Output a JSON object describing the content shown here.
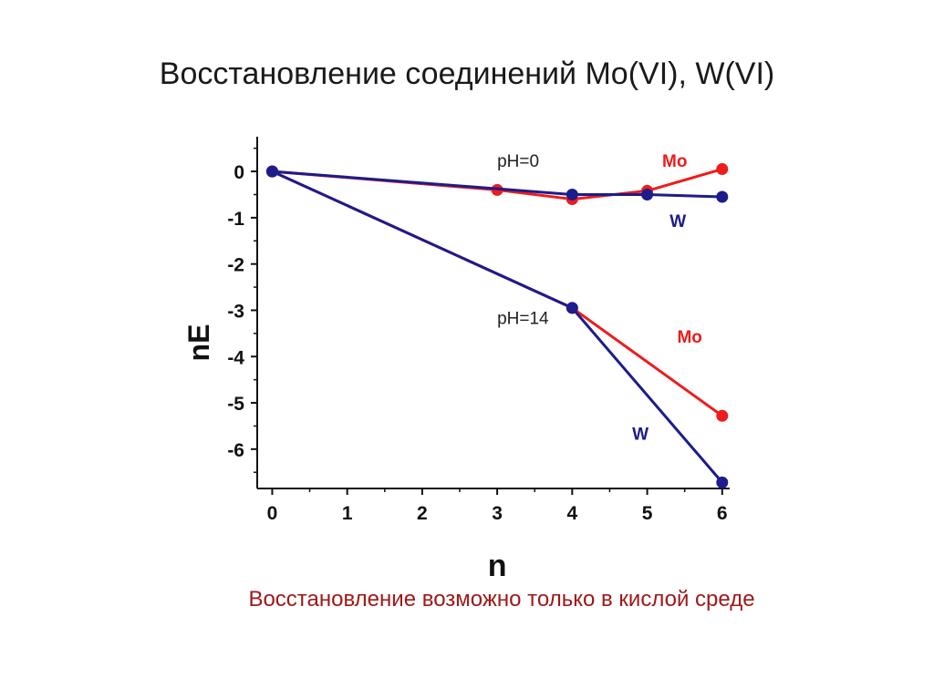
{
  "slide": {
    "title": "Восстановление соединений Mo(VI), W(VI)",
    "caption": "Восстановление возможно только в кислой среде"
  },
  "colors": {
    "mo": "#ee1c1c",
    "w": "#1c1c8c",
    "axis": "#111111",
    "caption": "#a01818"
  },
  "chart_data": {
    "type": "line",
    "xlabel": "n",
    "ylabel": "nE",
    "xlim": [
      -0.2,
      6.1
    ],
    "ylim": [
      -6.85,
      0.75
    ],
    "x_ticks": [
      0,
      1,
      2,
      3,
      4,
      5,
      6
    ],
    "y_ticks": [
      0,
      -1,
      -2,
      -3,
      -4,
      -5,
      -6
    ],
    "grid": false,
    "legend": "none",
    "series": [
      {
        "group": "pH=0",
        "name": "Mo",
        "color": "#ee1c1c",
        "x": [
          0,
          3,
          4,
          5,
          6
        ],
        "y": [
          0,
          -0.4,
          -0.6,
          -0.42,
          0.05
        ]
      },
      {
        "group": "pH=0",
        "name": "W",
        "color": "#1c1c8c",
        "x": [
          0,
          4,
          5,
          6
        ],
        "y": [
          0,
          -0.5,
          -0.5,
          -0.55
        ]
      },
      {
        "group": "pH=14",
        "name": "Mo",
        "color": "#ee1c1c",
        "x": [
          0,
          4,
          6
        ],
        "y": [
          0,
          -2.95,
          -5.28
        ]
      },
      {
        "group": "pH=14",
        "name": "W",
        "color": "#1c1c8c",
        "x": [
          0,
          4,
          6
        ],
        "y": [
          0,
          -2.95,
          -6.72
        ]
      }
    ],
    "annotations": [
      {
        "text": "pH=0",
        "x": 3.0,
        "y": 0.1,
        "role": "condition"
      },
      {
        "text": "Mo",
        "x": 5.2,
        "y": 0.1,
        "role": "series",
        "color": "#ee1c1c"
      },
      {
        "text": "W",
        "x": 5.3,
        "y": -1.2,
        "role": "series",
        "color": "#1c1c8c"
      },
      {
        "text": "pH=14",
        "x": 3.0,
        "y": -3.3,
        "role": "condition"
      },
      {
        "text": "Mo",
        "x": 5.4,
        "y": -3.7,
        "role": "series",
        "color": "#ee1c1c"
      },
      {
        "text": "W",
        "x": 4.8,
        "y": -5.8,
        "role": "series",
        "color": "#1c1c8c"
      }
    ]
  }
}
